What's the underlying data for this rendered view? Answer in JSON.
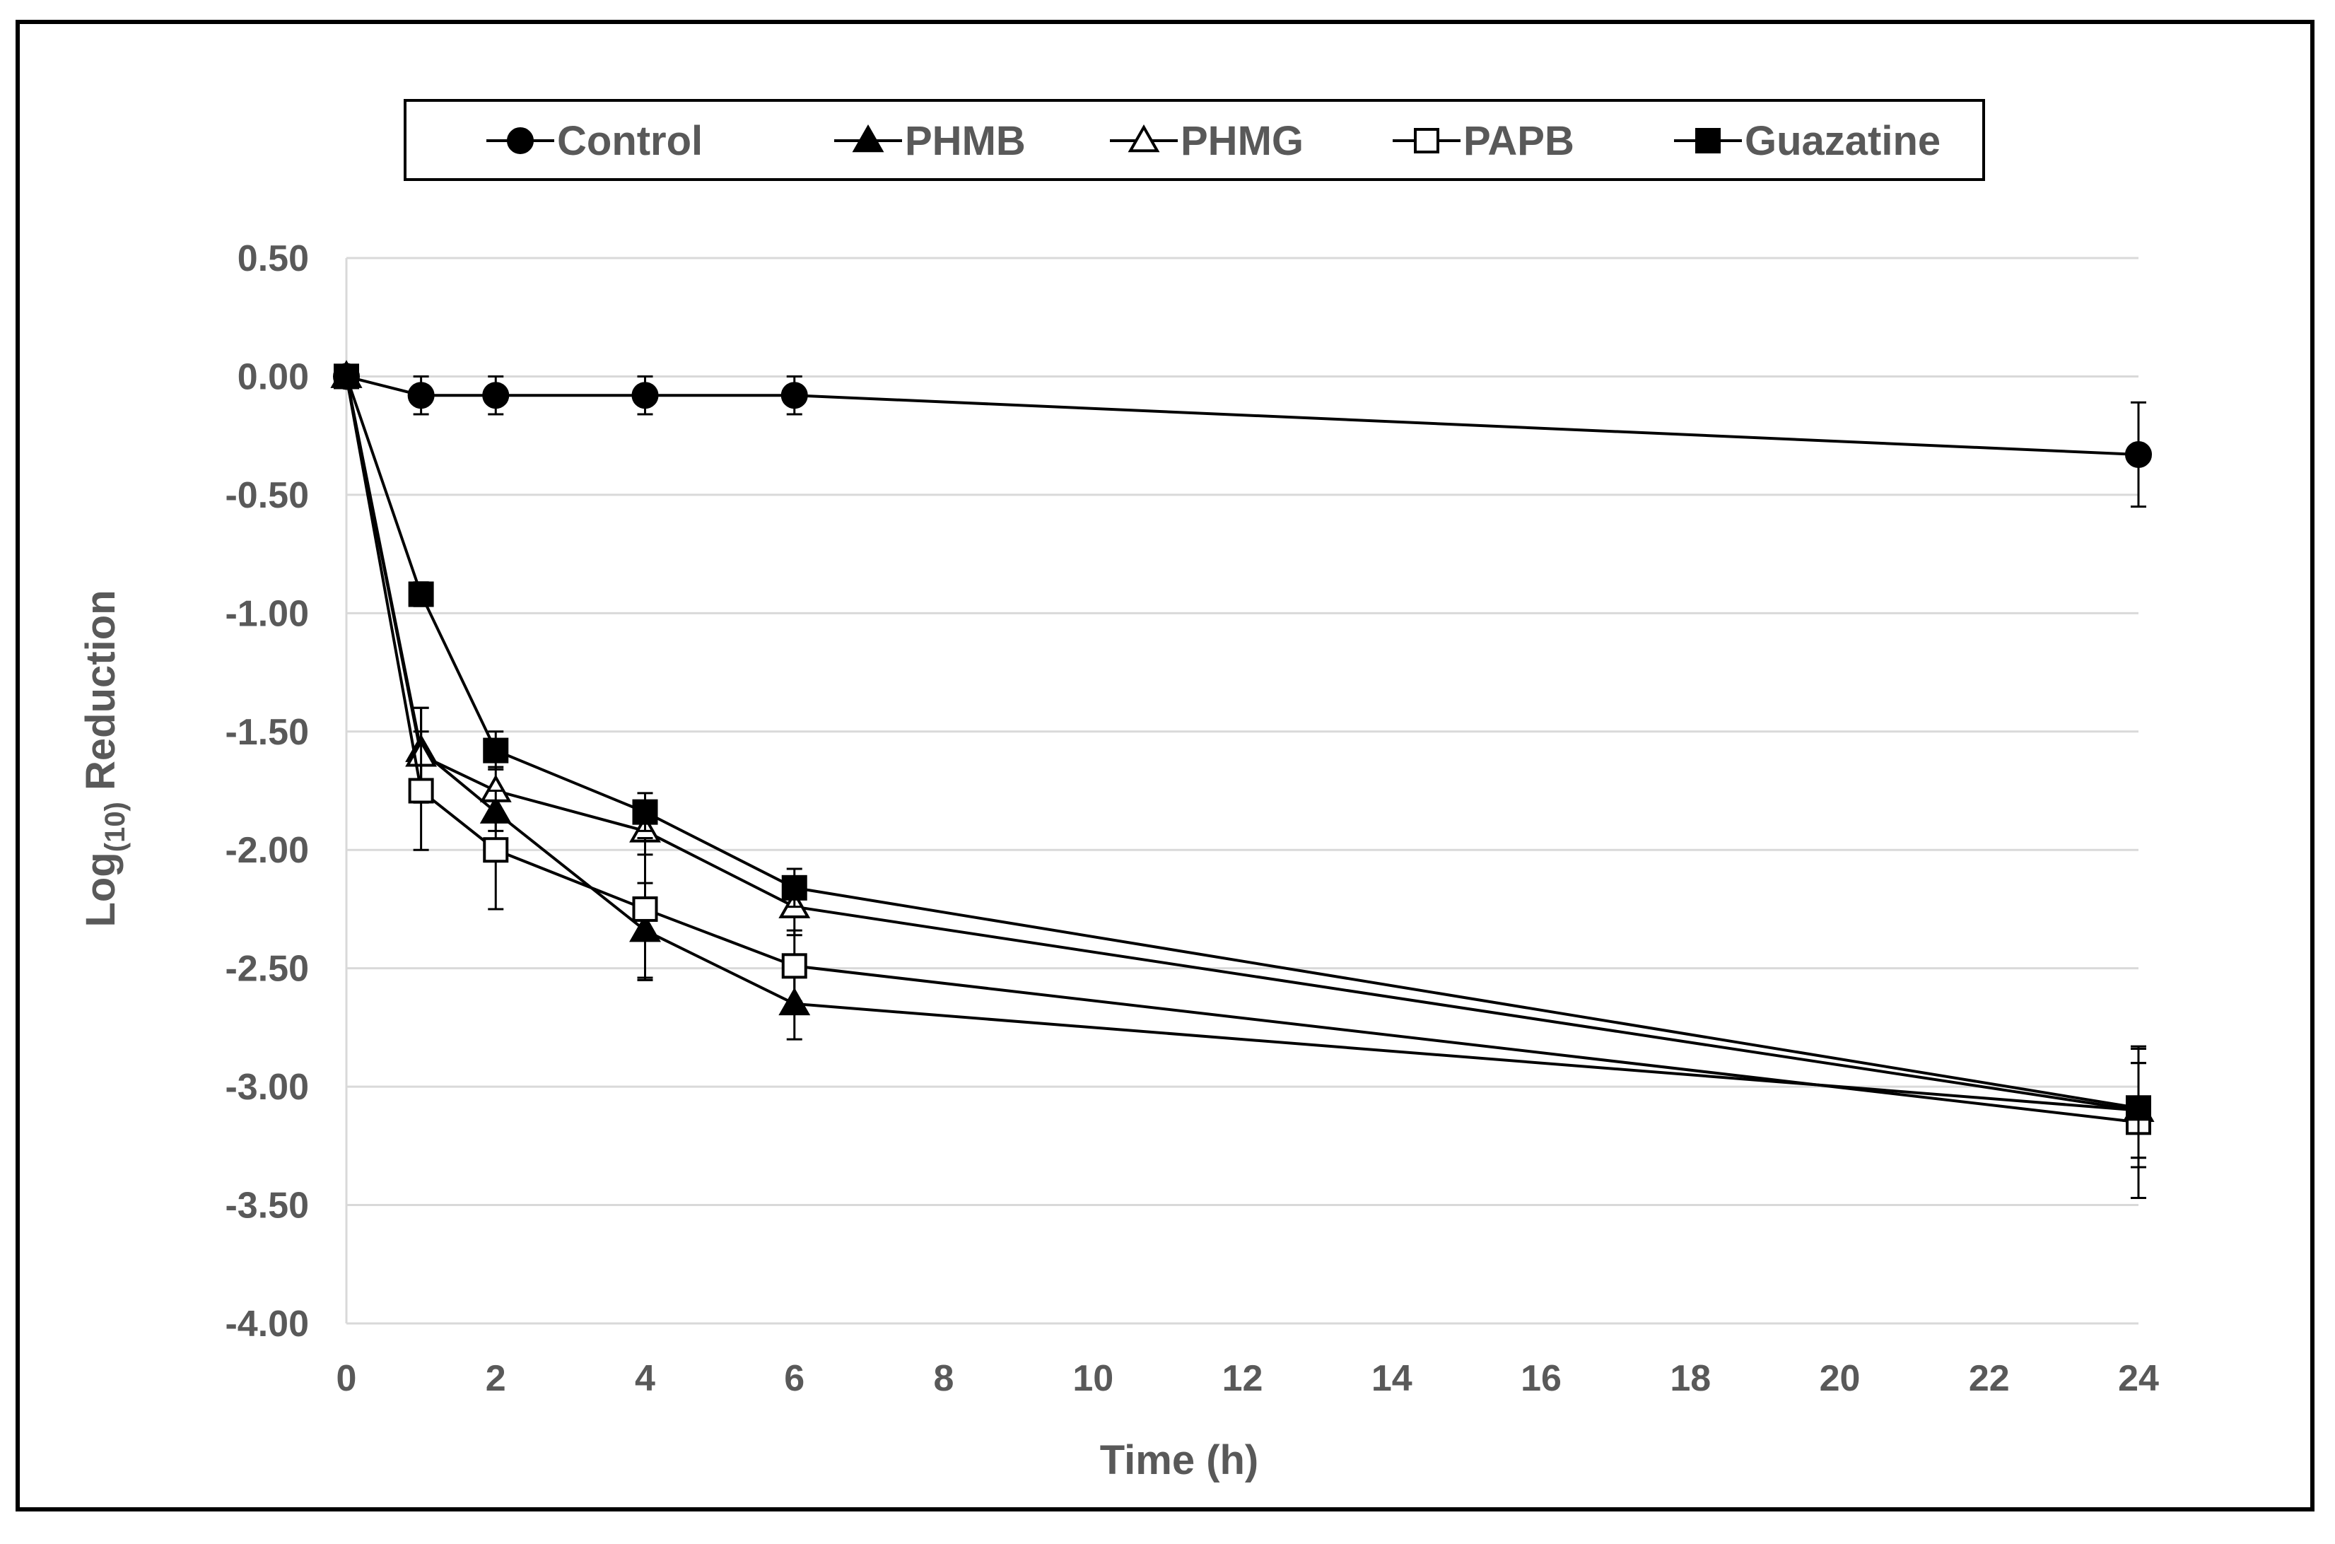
{
  "chart_data": {
    "type": "line",
    "title": "",
    "xlabel": "Time (h)",
    "ylabel": {
      "base": "Log",
      "subscript": "(10)",
      "rest": " Reduction"
    },
    "xlim": [
      0,
      24
    ],
    "ylim": [
      -4.0,
      0.5
    ],
    "x_ticks": [
      0,
      2,
      4,
      6,
      8,
      10,
      12,
      14,
      16,
      18,
      20,
      22,
      24
    ],
    "y_ticks": [
      0.5,
      0.0,
      -0.5,
      -1.0,
      -1.5,
      -2.0,
      -2.5,
      -3.0,
      -3.5,
      -4.0
    ],
    "y_tick_labels": [
      "0.50",
      "0.00",
      "-0.50",
      "-1.00",
      "-1.50",
      "-2.00",
      "-2.50",
      "-3.00",
      "-3.50",
      "-4.00"
    ],
    "grid": "horizontal",
    "legend_position": "top",
    "series": [
      {
        "name": "Control",
        "marker": "circle-filled",
        "color": "#000000",
        "x": [
          0,
          1,
          2,
          4,
          6,
          24
        ],
        "y": [
          0.0,
          -0.08,
          -0.08,
          -0.08,
          -0.08,
          -0.33
        ],
        "err": [
          0,
          0.08,
          0.08,
          0.08,
          0.08,
          0.22
        ]
      },
      {
        "name": "PHMB",
        "marker": "triangle-filled",
        "color": "#000000",
        "x": [
          0,
          1,
          2,
          4,
          6,
          24
        ],
        "y": [
          0.0,
          -1.58,
          -1.84,
          -2.34,
          -2.65,
          -3.1
        ],
        "err": [
          0,
          0.18,
          0.08,
          0.2,
          0.15,
          0.2
        ]
      },
      {
        "name": "PHMG",
        "marker": "triangle-open",
        "color": "#000000",
        "x": [
          0,
          1,
          2,
          4,
          6,
          24
        ],
        "y": [
          0.0,
          -1.6,
          -1.75,
          -1.92,
          -2.24,
          -3.1
        ],
        "err": [
          0,
          0.2,
          0.1,
          0.1,
          0.12,
          0.2
        ]
      },
      {
        "name": "PAPB",
        "marker": "square-open",
        "color": "#000000",
        "x": [
          0,
          1,
          2,
          4,
          6,
          24
        ],
        "y": [
          0.0,
          -1.75,
          -2.0,
          -2.25,
          -2.49,
          -3.15
        ],
        "err": [
          0,
          0.25,
          0.25,
          0.3,
          0.15,
          0.32
        ]
      },
      {
        "name": "Guazatine",
        "marker": "square-filled",
        "color": "#000000",
        "x": [
          0,
          1,
          2,
          4,
          6,
          24
        ],
        "y": [
          0.0,
          -0.92,
          -1.58,
          -1.84,
          -2.16,
          -3.09
        ],
        "err": [
          0,
          0.05,
          0.08,
          0.08,
          0.08,
          0.25
        ]
      }
    ]
  },
  "colors": {
    "gridline": "#d9d9d9",
    "axis_text": "#595959",
    "series": "#000000"
  }
}
